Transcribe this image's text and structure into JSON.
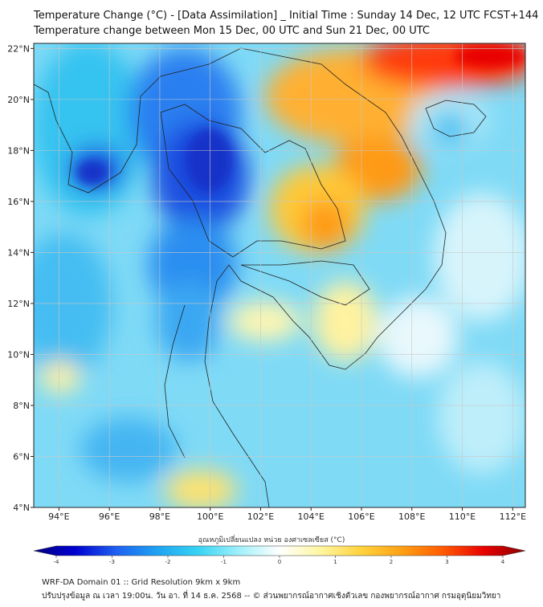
{
  "title_line1": "Temperature Change (°C) - [Data Assimilation] _ Initial Time : Sunday 14 Dec, 12 UTC FCST+144",
  "title_line2": "Temperature change between Mon 15 Dec, 00 UTC and Sun 21 Dec, 00 UTC",
  "lon_ticks": [
    {
      "value": 94,
      "label": "94°E"
    },
    {
      "value": 96,
      "label": "96°E"
    },
    {
      "value": 98,
      "label": "98°E"
    },
    {
      "value": 100,
      "label": "100°E"
    },
    {
      "value": 102,
      "label": "102°E"
    },
    {
      "value": 104,
      "label": "104°E"
    },
    {
      "value": 106,
      "label": "106°E"
    },
    {
      "value": 108,
      "label": "108°E"
    },
    {
      "value": 110,
      "label": "110°E"
    },
    {
      "value": 112,
      "label": "112°E"
    }
  ],
  "lat_ticks": [
    {
      "value": 4,
      "label": "4°N"
    },
    {
      "value": 6,
      "label": "6°N"
    },
    {
      "value": 8,
      "label": "8°N"
    },
    {
      "value": 10,
      "label": "10°N"
    },
    {
      "value": 12,
      "label": "12°N"
    },
    {
      "value": 14,
      "label": "14°N"
    },
    {
      "value": 16,
      "label": "16°N"
    },
    {
      "value": 18,
      "label": "18°N"
    },
    {
      "value": 20,
      "label": "20°N"
    },
    {
      "value": 22,
      "label": "22°N"
    }
  ],
  "extent": {
    "lon_min": 93,
    "lon_max": 112.5,
    "lat_min": 4,
    "lat_max": 22.2
  },
  "colorbar": {
    "title": "อุณหภูมิเปลี่ยนแปลง หน่วย องศาเซลเซียส (°C)",
    "min": -4,
    "max": 4,
    "ticks": [
      {
        "value": -4,
        "label": "-4"
      },
      {
        "value": -3,
        "label": "-3"
      },
      {
        "value": -2,
        "label": "-2"
      },
      {
        "value": -1,
        "label": "-1"
      },
      {
        "value": 0,
        "label": "0"
      },
      {
        "value": 1,
        "label": "1"
      },
      {
        "value": 2,
        "label": "2"
      },
      {
        "value": 3,
        "label": "3"
      },
      {
        "value": 4,
        "label": "4"
      }
    ],
    "stops": [
      "#000080",
      "#0000d0",
      "#1e5ff0",
      "#1fa2f2",
      "#37d3f3",
      "#9ff0fa",
      "#ffffff",
      "#fff6a0",
      "#ffd23c",
      "#ffa014",
      "#ff5a00",
      "#e80000",
      "#8a0000"
    ]
  },
  "footer_line1": "WRF-DA Domain 01 :: Grid Resolution 9km x 9km",
  "footer_line2": "ปรับปรุงข้อมูล ณ เวลา 19:00น. วัน อา. ที่ 14 ธ.ค. 2568 -- © ส่วนพยากรณ์อากาศเชิงตัวเลข กองพยากรณ์อากาศ กรมอุตุนิยมวิทยา"
}
